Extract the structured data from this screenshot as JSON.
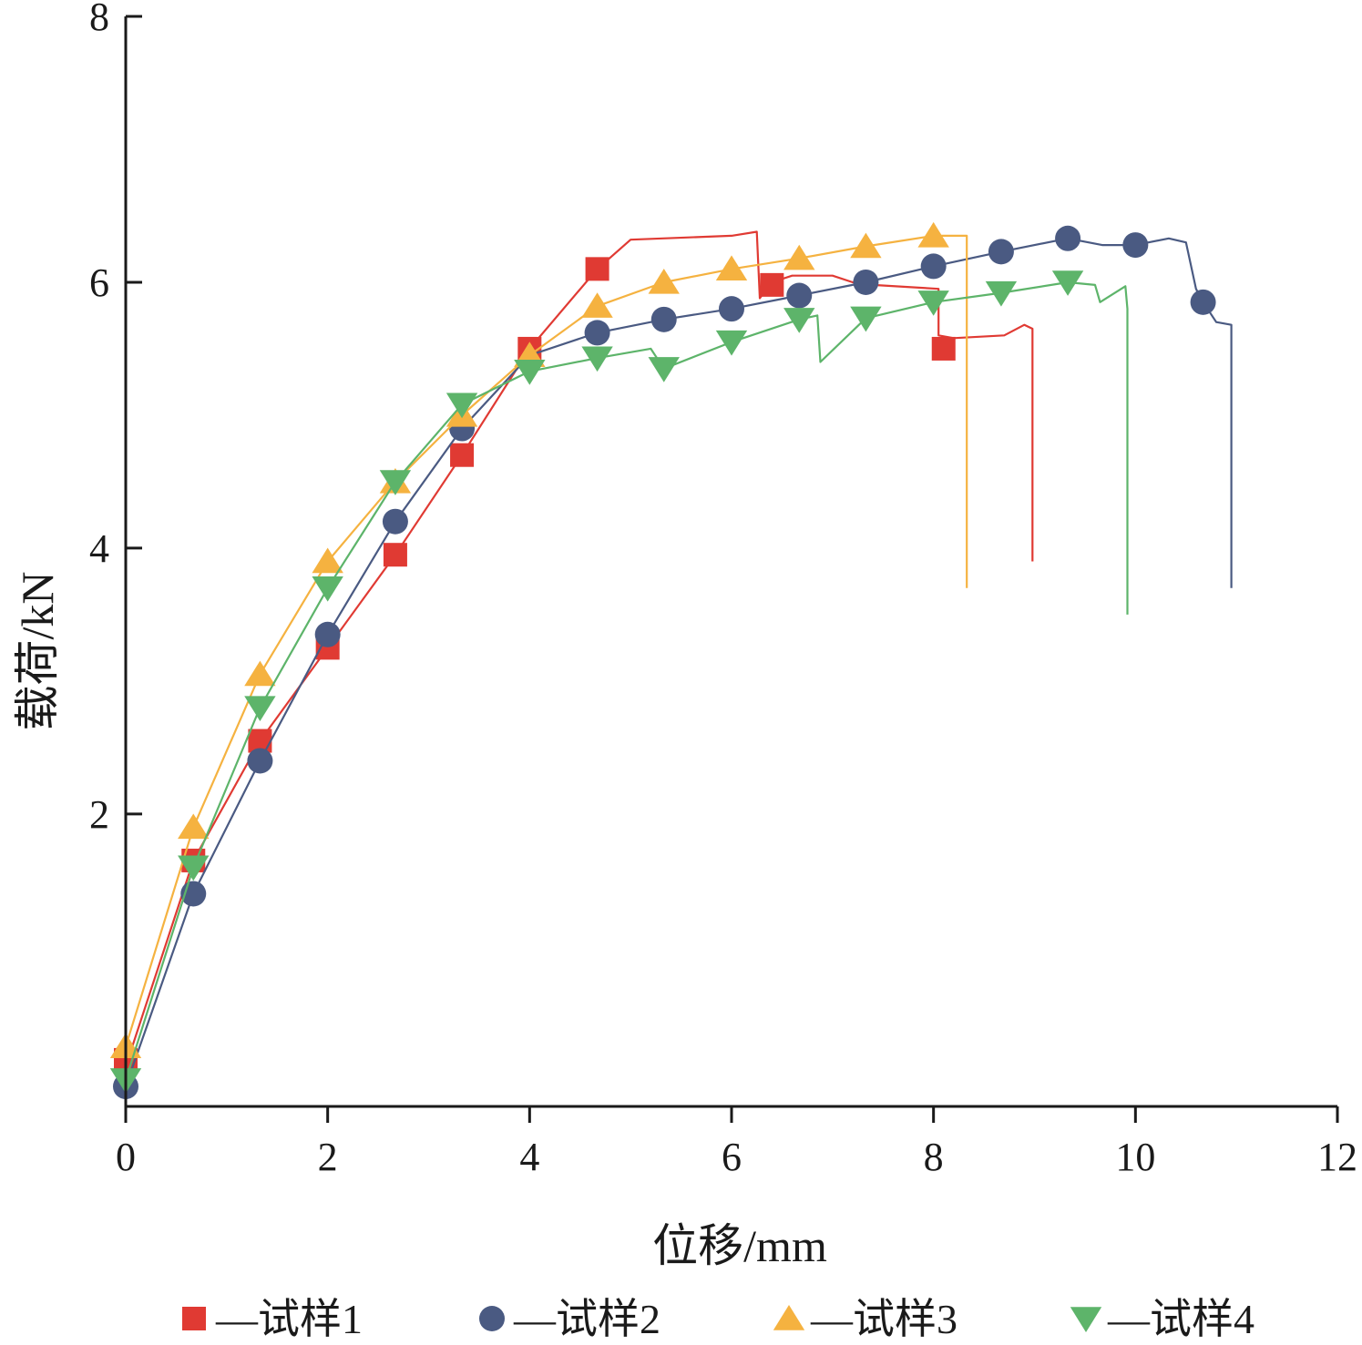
{
  "chart_data": {
    "type": "line",
    "xlabel": "位移/mm",
    "ylabel": "载荷/kN",
    "xlim": [
      0,
      12
    ],
    "ylim": [
      -0.2,
      8
    ],
    "xticks": [
      0,
      2,
      4,
      6,
      8,
      10,
      12
    ],
    "yticks": [
      2,
      4,
      6,
      8
    ],
    "grid": false,
    "legend_position": "bottom",
    "legend_dash": "—",
    "series": [
      {
        "name": "试样1",
        "color": "#E03A33",
        "marker": "square",
        "line": [
          [
            0,
            0.1
          ],
          [
            0.67,
            1.65
          ],
          [
            1.33,
            2.55
          ],
          [
            2.0,
            3.25
          ],
          [
            2.67,
            3.95
          ],
          [
            3.33,
            4.7
          ],
          [
            4.0,
            5.5
          ],
          [
            4.67,
            6.1
          ],
          [
            5.0,
            6.32
          ],
          [
            6.0,
            6.35
          ],
          [
            6.25,
            6.38
          ],
          [
            6.28,
            5.88
          ],
          [
            6.4,
            6.0
          ],
          [
            6.6,
            6.05
          ],
          [
            7.0,
            6.05
          ],
          [
            7.2,
            6.0
          ],
          [
            7.35,
            6.0
          ],
          [
            7.4,
            5.98
          ],
          [
            8.05,
            5.95
          ],
          [
            8.05,
            5.6
          ],
          [
            8.2,
            5.58
          ],
          [
            8.7,
            5.6
          ],
          [
            8.9,
            5.68
          ],
          [
            8.98,
            5.65
          ],
          [
            8.98,
            3.9
          ]
        ],
        "points": [
          [
            0,
            0.15
          ],
          [
            0.67,
            1.65
          ],
          [
            1.33,
            2.55
          ],
          [
            2.0,
            3.25
          ],
          [
            2.67,
            3.95
          ],
          [
            3.33,
            4.7
          ],
          [
            4.0,
            5.5
          ],
          [
            4.67,
            6.1
          ],
          [
            6.4,
            5.98
          ],
          [
            8.1,
            5.5
          ]
        ]
      },
      {
        "name": "试样2",
        "color": "#4A5A82",
        "marker": "circle",
        "line": [
          [
            0,
            -0.05
          ],
          [
            0.67,
            1.4
          ],
          [
            1.33,
            2.4
          ],
          [
            2.0,
            3.35
          ],
          [
            2.67,
            4.2
          ],
          [
            3.33,
            4.9
          ],
          [
            4.0,
            5.45
          ],
          [
            4.67,
            5.62
          ],
          [
            5.33,
            5.72
          ],
          [
            6.0,
            5.8
          ],
          [
            6.67,
            5.9
          ],
          [
            7.33,
            6.0
          ],
          [
            8.0,
            6.12
          ],
          [
            8.67,
            6.23
          ],
          [
            9.33,
            6.33
          ],
          [
            9.67,
            6.28
          ],
          [
            10.0,
            6.28
          ],
          [
            10.33,
            6.33
          ],
          [
            10.5,
            6.3
          ],
          [
            10.6,
            5.95
          ],
          [
            10.67,
            5.85
          ],
          [
            10.8,
            5.7
          ],
          [
            10.95,
            5.68
          ],
          [
            10.95,
            3.7
          ]
        ],
        "points": [
          [
            0,
            -0.05
          ],
          [
            0.67,
            1.4
          ],
          [
            1.33,
            2.4
          ],
          [
            2.0,
            3.35
          ],
          [
            2.67,
            4.2
          ],
          [
            3.33,
            4.9
          ],
          [
            4.67,
            5.62
          ],
          [
            5.33,
            5.72
          ],
          [
            6.0,
            5.8
          ],
          [
            6.67,
            5.9
          ],
          [
            7.33,
            6.0
          ],
          [
            8.0,
            6.12
          ],
          [
            8.67,
            6.23
          ],
          [
            9.33,
            6.33
          ],
          [
            10.0,
            6.28
          ],
          [
            10.67,
            5.85
          ]
        ]
      },
      {
        "name": "试样3",
        "color": "#F5B240",
        "marker": "triangle-up",
        "line": [
          [
            0,
            0.25
          ],
          [
            0.67,
            1.9
          ],
          [
            1.33,
            3.05
          ],
          [
            2.0,
            3.9
          ],
          [
            2.67,
            4.5
          ],
          [
            3.33,
            5.0
          ],
          [
            4.0,
            5.45
          ],
          [
            4.67,
            5.82
          ],
          [
            5.33,
            6.0
          ],
          [
            6.0,
            6.1
          ],
          [
            6.67,
            6.18
          ],
          [
            7.33,
            6.27
          ],
          [
            8.0,
            6.35
          ],
          [
            8.33,
            6.35
          ],
          [
            8.33,
            3.7
          ]
        ],
        "points": [
          [
            0,
            0.25
          ],
          [
            0.67,
            1.9
          ],
          [
            1.33,
            3.05
          ],
          [
            2.0,
            3.9
          ],
          [
            2.67,
            4.5
          ],
          [
            3.33,
            5.0
          ],
          [
            4.0,
            5.45
          ],
          [
            4.67,
            5.82
          ],
          [
            5.33,
            6.0
          ],
          [
            6.0,
            6.1
          ],
          [
            6.67,
            6.18
          ],
          [
            7.33,
            6.27
          ],
          [
            8.0,
            6.35
          ]
        ]
      },
      {
        "name": "试样4",
        "color": "#5DB46A",
        "marker": "triangle-down",
        "line": [
          [
            0,
            0.0
          ],
          [
            0.67,
            1.6
          ],
          [
            1.33,
            2.8
          ],
          [
            2.0,
            3.7
          ],
          [
            2.67,
            4.5
          ],
          [
            3.33,
            5.08
          ],
          [
            4.0,
            5.33
          ],
          [
            4.67,
            5.43
          ],
          [
            5.2,
            5.5
          ],
          [
            5.33,
            5.35
          ],
          [
            6.0,
            5.55
          ],
          [
            6.67,
            5.72
          ],
          [
            6.85,
            5.75
          ],
          [
            6.88,
            5.4
          ],
          [
            7.33,
            5.73
          ],
          [
            8.0,
            5.85
          ],
          [
            8.67,
            5.92
          ],
          [
            9.33,
            6.0
          ],
          [
            9.6,
            5.98
          ],
          [
            9.65,
            5.85
          ],
          [
            9.9,
            5.97
          ],
          [
            9.92,
            5.8
          ],
          [
            9.92,
            3.5
          ]
        ],
        "points": [
          [
            0,
            0.0
          ],
          [
            0.67,
            1.6
          ],
          [
            1.33,
            2.8
          ],
          [
            2.0,
            3.7
          ],
          [
            2.67,
            4.5
          ],
          [
            3.33,
            5.08
          ],
          [
            4.0,
            5.33
          ],
          [
            4.67,
            5.43
          ],
          [
            5.33,
            5.35
          ],
          [
            6.0,
            5.55
          ],
          [
            6.67,
            5.72
          ],
          [
            7.33,
            5.73
          ],
          [
            8.0,
            5.85
          ],
          [
            8.67,
            5.92
          ],
          [
            9.33,
            6.0
          ]
        ]
      }
    ]
  }
}
